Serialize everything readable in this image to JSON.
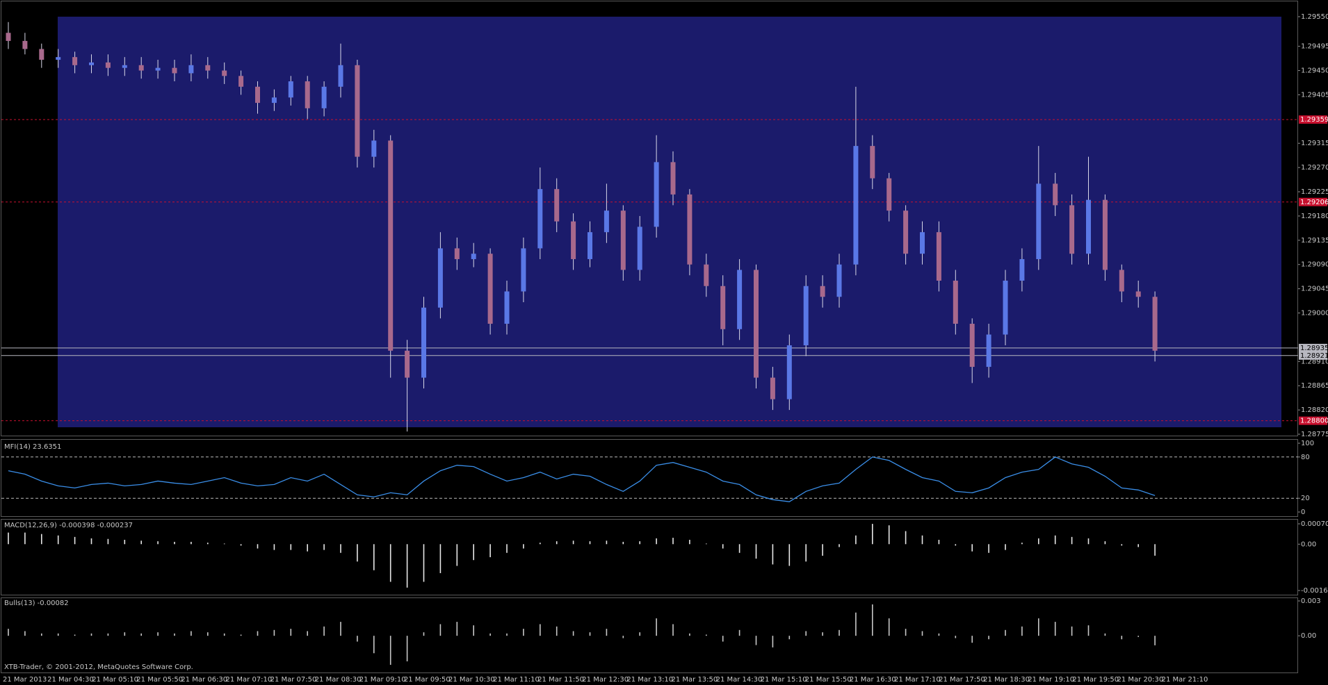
{
  "footer": "XTB-Trader, © 2001-2012, MetaQuotes Software Corp.",
  "time_labels": [
    "21 Mar 2013",
    "21 Mar 04:30",
    "21 Mar 05:10",
    "21 Mar 05:50",
    "21 Mar 06:30",
    "21 Mar 07:10",
    "21 Mar 07:50",
    "21 Mar 08:30",
    "21 Mar 09:10",
    "21 Mar 09:50",
    "21 Mar 10:30",
    "21 Mar 11:10",
    "21 Mar 11:50",
    "21 Mar 12:30",
    "21 Mar 13:10",
    "21 Mar 13:50",
    "21 Mar 14:30",
    "21 Mar 15:10",
    "21 Mar 15:50",
    "21 Mar 16:30",
    "21 Mar 17:10",
    "21 Mar 17:50",
    "21 Mar 18:30",
    "21 Mar 19:10",
    "21 Mar 19:50",
    "21 Mar 20:30",
    "21 Mar 21:10"
  ],
  "chart_data": [
    {
      "type": "candlestick",
      "up_color": "#5a78e6",
      "down_color": "#a8698c",
      "wick_color": "#d8d8e8",
      "open": [
        1.2952,
        1.29505,
        1.2949,
        1.2947,
        1.29475,
        1.2946,
        1.29465,
        1.29455,
        1.2946,
        1.2945,
        1.29455,
        1.29445,
        1.2946,
        1.2945,
        1.2944,
        1.2942,
        1.2939,
        1.294,
        1.2943,
        1.2938,
        1.2942,
        1.2946,
        1.2929,
        1.2932,
        1.2893,
        1.2888,
        1.2901,
        1.2912,
        1.291,
        1.2911,
        1.2898,
        1.2904,
        1.2912,
        1.2923,
        1.2917,
        1.291,
        1.2915,
        1.2919,
        1.2908,
        1.2916,
        1.2928,
        1.2922,
        1.2909,
        1.2905,
        1.2897,
        1.2908,
        1.2888,
        1.2884,
        1.2894,
        1.2905,
        1.2903,
        1.2909,
        1.2931,
        1.2925,
        1.2919,
        1.2911,
        1.2915,
        1.2906,
        1.2898,
        1.289,
        1.2896,
        1.2906,
        1.291,
        1.2924,
        1.292,
        1.2911,
        1.2921,
        1.2908,
        1.2904,
        1.2903
      ],
      "high": [
        1.2954,
        1.2952,
        1.295,
        1.2949,
        1.29485,
        1.2948,
        1.2948,
        1.29475,
        1.29475,
        1.2947,
        1.2947,
        1.2948,
        1.29475,
        1.29465,
        1.2945,
        1.2943,
        1.29415,
        1.2944,
        1.2944,
        1.2943,
        1.295,
        1.2947,
        1.2934,
        1.2933,
        1.2895,
        1.2903,
        1.2915,
        1.2914,
        1.2913,
        1.2912,
        1.2906,
        1.2914,
        1.2927,
        1.2925,
        1.29185,
        1.2917,
        1.2924,
        1.292,
        1.2918,
        1.2933,
        1.293,
        1.2923,
        1.2911,
        1.2907,
        1.291,
        1.2909,
        1.289,
        1.2896,
        1.2907,
        1.2907,
        1.2911,
        1.2942,
        1.2933,
        1.2926,
        1.292,
        1.2917,
        1.2917,
        1.2908,
        1.2899,
        1.2898,
        1.2908,
        1.2912,
        1.2931,
        1.2926,
        1.2922,
        1.2929,
        1.2922,
        1.2909,
        1.2906,
        1.2904
      ],
      "low": [
        1.2949,
        1.2948,
        1.29455,
        1.29455,
        1.29445,
        1.29445,
        1.2944,
        1.2944,
        1.29435,
        1.29435,
        1.2943,
        1.2943,
        1.29435,
        1.29425,
        1.29405,
        1.2937,
        1.29375,
        1.29385,
        1.2936,
        1.29365,
        1.294,
        1.2927,
        1.2927,
        1.2888,
        1.2878,
        1.2886,
        1.2899,
        1.2908,
        1.29085,
        1.2896,
        1.2896,
        1.2902,
        1.291,
        1.2915,
        1.2908,
        1.29085,
        1.2913,
        1.2906,
        1.2906,
        1.2914,
        1.292,
        1.2907,
        1.2903,
        1.2894,
        1.2895,
        1.2886,
        1.2882,
        1.2882,
        1.2892,
        1.2901,
        1.2901,
        1.2907,
        1.2923,
        1.2917,
        1.2909,
        1.2909,
        1.2904,
        1.2896,
        1.2887,
        1.2888,
        1.2894,
        1.2904,
        1.2908,
        1.2918,
        1.2909,
        1.2909,
        1.2906,
        1.2902,
        1.2901,
        1.2891
      ],
      "close": [
        1.29505,
        1.2949,
        1.2947,
        1.29475,
        1.2946,
        1.29465,
        1.29455,
        1.2946,
        1.2945,
        1.29455,
        1.29445,
        1.2946,
        1.2945,
        1.2944,
        1.2942,
        1.2939,
        1.294,
        1.2943,
        1.2938,
        1.2942,
        1.2946,
        1.2929,
        1.2932,
        1.2893,
        1.2888,
        1.2901,
        1.2912,
        1.291,
        1.2911,
        1.2898,
        1.2904,
        1.2912,
        1.2923,
        1.2917,
        1.291,
        1.2915,
        1.2919,
        1.2908,
        1.2916,
        1.2928,
        1.2922,
        1.2909,
        1.2905,
        1.2897,
        1.2908,
        1.2888,
        1.2884,
        1.2894,
        1.2905,
        1.2903,
        1.2909,
        1.2931,
        1.2925,
        1.2919,
        1.2911,
        1.2915,
        1.2906,
        1.2898,
        1.289,
        1.2896,
        1.2906,
        1.291,
        1.2924,
        1.292,
        1.2911,
        1.2921,
        1.2908,
        1.2904,
        1.2903,
        1.2893
      ],
      "ylim": [
        1.28775,
        1.2955
      ],
      "yticks": [
        {
          "value": 1.2955,
          "label": "1.29550"
        },
        {
          "value": 1.29495,
          "label": "1.29495"
        },
        {
          "value": 1.2945,
          "label": "1.29450"
        },
        {
          "value": 1.29405,
          "label": "1.29405"
        },
        {
          "value": 1.29315,
          "label": "1.29315"
        },
        {
          "value": 1.2927,
          "label": "1.29270"
        },
        {
          "value": 1.29225,
          "label": "1.29225"
        },
        {
          "value": 1.2918,
          "label": "1.29180"
        },
        {
          "value": 1.29135,
          "label": "1.29135"
        },
        {
          "value": 1.2909,
          "label": "1.29090"
        },
        {
          "value": 1.29045,
          "label": "1.29045"
        },
        {
          "value": 1.29,
          "label": "1.29000"
        },
        {
          "value": 1.2891,
          "label": "1.28910"
        },
        {
          "value": 1.28865,
          "label": "1.28865"
        },
        {
          "value": 1.2882,
          "label": "1.28820"
        },
        {
          "value": 1.28775,
          "label": "1.28775"
        }
      ],
      "levels": [
        {
          "value": 1.29359,
          "label": "1.29359",
          "color": "#c8102e"
        },
        {
          "value": 1.29206,
          "label": "1.29206",
          "color": "#c8102e"
        },
        {
          "value": 1.288,
          "label": "1.28800",
          "color": "#c8102e"
        },
        {
          "value": 1.28935,
          "label": "1.28935",
          "color": "#b8b8c0"
        },
        {
          "value": 1.28921,
          "label": "1.28921",
          "color": "#b8b8c0"
        }
      ]
    },
    {
      "type": "line",
      "title": "MFI(14) 23.6351",
      "color": "#3a8ee8",
      "grid": true,
      "values": [
        60,
        55,
        45,
        38,
        35,
        40,
        42,
        38,
        40,
        45,
        42,
        40,
        45,
        50,
        42,
        38,
        40,
        50,
        45,
        55,
        40,
        25,
        22,
        28,
        25,
        45,
        60,
        68,
        66,
        55,
        45,
        50,
        58,
        48,
        55,
        52,
        40,
        30,
        45,
        68,
        72,
        65,
        58,
        45,
        40,
        25,
        18,
        15,
        30,
        38,
        42,
        62,
        80,
        75,
        62,
        50,
        45,
        30,
        28,
        35,
        50,
        58,
        62,
        80,
        70,
        65,
        52,
        35,
        32,
        24
      ],
      "ylim": [
        0,
        100
      ],
      "yticks": [
        100,
        80,
        20,
        0
      ]
    },
    {
      "type": "bar",
      "title": "MACD(12,26,9) -0.000398 -0.000237",
      "color": "#e8e8e8",
      "values": [
        0.0004,
        0.0004,
        0.00035,
        0.0003,
        0.00025,
        0.0002,
        0.00018,
        0.00015,
        0.00012,
        0.0001,
        8e-05,
        8e-05,
        5e-05,
        2e-05,
        -5e-05,
        -0.00015,
        -0.0002,
        -0.0002,
        -0.00025,
        -0.0002,
        -0.0003,
        -0.0006,
        -0.0009,
        -0.0013,
        -0.0015,
        -0.0013,
        -0.001,
        -0.00075,
        -0.00055,
        -0.00045,
        -0.0003,
        -0.00015,
        5e-05,
        0.0001,
        0.00012,
        0.0001,
        0.00012,
        8e-05,
        0.0001,
        0.0002,
        0.00022,
        0.00015,
        2e-05,
        -0.00015,
        -0.0003,
        -0.0005,
        -0.0007,
        -0.00075,
        -0.0006,
        -0.0004,
        -0.0001,
        0.0003,
        0.0007,
        0.00065,
        0.00045,
        0.0003,
        0.00015,
        -5e-05,
        -0.00025,
        -0.0003,
        -0.0002,
        5e-05,
        0.0002,
        0.0003,
        0.00025,
        0.0002,
        0.0001,
        -5e-05,
        -0.0001,
        -0.000398
      ],
      "ylim": [
        -0.0016,
        0.000702
      ],
      "yticks": [
        0.000702,
        {
          "value": 0,
          "label": "0.00"
        },
        -0.0016
      ]
    },
    {
      "type": "bar",
      "title": "Bulls(13) -0.00082",
      "color": "#c8c8c8",
      "values": [
        0.0006,
        0.0004,
        0.0002,
        0.0002,
        0.0001,
        0.0002,
        0.0002,
        0.0003,
        0.0002,
        0.0003,
        0.0002,
        0.0004,
        0.0003,
        0.0002,
        0.0001,
        0.0004,
        0.0005,
        0.0006,
        0.0004,
        0.0008,
        0.0012,
        -0.0005,
        -0.0015,
        -0.0025,
        -0.0022,
        0.0003,
        0.001,
        0.0012,
        0.0009,
        0.0002,
        0.0002,
        0.0006,
        0.001,
        0.0008,
        0.0004,
        0.0003,
        0.0006,
        -0.0002,
        0.0003,
        0.0015,
        0.001,
        0.0002,
        0.0001,
        -0.0005,
        0.0005,
        -0.0008,
        -0.001,
        -0.0003,
        0.0004,
        0.0003,
        0.0005,
        0.002,
        0.0027,
        0.0015,
        0.0006,
        0.0004,
        0.0002,
        -0.0002,
        -0.0006,
        -0.0003,
        0.0005,
        0.0008,
        0.0015,
        0.0012,
        0.0008,
        0.0009,
        0.0002,
        -0.0003,
        -0.0001,
        -0.00082
      ],
      "ylim": [
        -0.0031,
        0.003
      ],
      "yticks": [
        0.003,
        {
          "value": 0,
          "label": "0.00"
        }
      ]
    }
  ]
}
